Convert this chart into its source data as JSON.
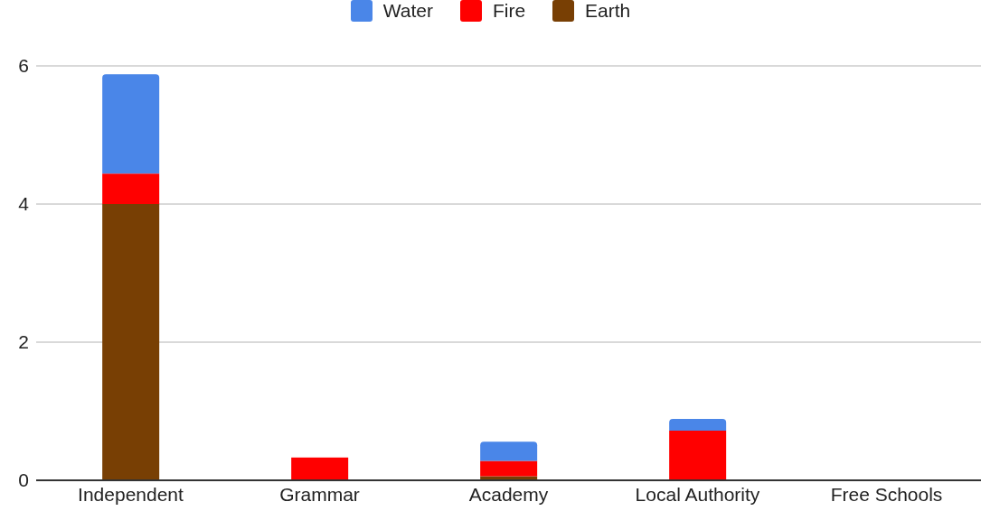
{
  "chart_data": {
    "type": "bar",
    "stacked": true,
    "categories": [
      "Independent",
      "Grammar",
      "Academy",
      "Local Authority",
      "Free Schools"
    ],
    "series": [
      {
        "name": "Earth",
        "color": "#783f04",
        "values": [
          4,
          0,
          0.06,
          0,
          0
        ]
      },
      {
        "name": "Fire",
        "color": "#ff0000",
        "values": [
          0.44,
          0.33,
          0.22,
          0.72,
          0
        ]
      },
      {
        "name": "Water",
        "color": "#4a86e8",
        "values": [
          1.44,
          0,
          0.28,
          0.17,
          0
        ]
      }
    ],
    "ylim": [
      0,
      6
    ],
    "yticks": [
      0,
      2,
      4,
      6
    ],
    "grid": "y",
    "legend": "top"
  }
}
